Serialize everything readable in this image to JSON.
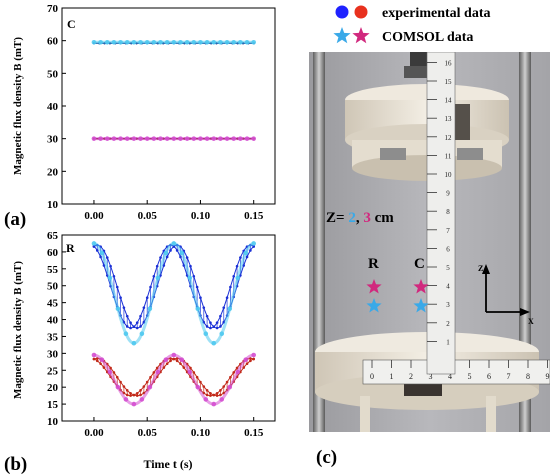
{
  "figure": {
    "label_a": "(a)",
    "label_b": "(b)",
    "label_c": "(c)"
  },
  "legend": {
    "experimental": "experimental data",
    "comsol": "COMSOL data",
    "experimental_colors": [
      "#1f22ff",
      "#e8311e"
    ],
    "comsol_colors": [
      "#3aa9e8",
      "#d1297e"
    ]
  },
  "photo": {
    "z_prefix": "Z= ",
    "z_value_1": "2",
    "z_separator": ", ",
    "z_value_2": "3",
    "z_unit": " cm",
    "z_value_1_color": "#3aa9e8",
    "z_value_2_color": "#d1297e",
    "label_R": "R",
    "label_C": "C",
    "axis_z": "Z",
    "axis_x": "X",
    "ruler_vertical_marks": [
      "1",
      "2",
      "3",
      "4",
      "5",
      "6",
      "7",
      "8",
      "9",
      "10",
      "11",
      "12",
      "13",
      "14",
      "15",
      "16"
    ],
    "ruler_horizontal_marks": [
      "0",
      "1",
      "2",
      "3",
      "4",
      "5",
      "6",
      "7",
      "8",
      "9"
    ]
  },
  "chart_data": [
    {
      "panel": "C",
      "type": "scatter",
      "xlabel": "",
      "ylabel": "Magnetic flux density B (mT)",
      "xlim": [
        -0.03,
        0.17
      ],
      "ylim": [
        10,
        70
      ],
      "xticks": [
        "0.00",
        "0.05",
        "0.10",
        "0.15"
      ],
      "yticks": [
        "10",
        "20",
        "30",
        "40",
        "50",
        "60",
        "70"
      ],
      "series": [
        {
          "kind": "exp-line",
          "color": "#0a2a8a",
          "x_start": 0.0,
          "x_end": 0.15,
          "y": 59.2
        },
        {
          "kind": "comsol",
          "color": "#4ec9ef",
          "x_start": 0.0,
          "x_end": 0.15,
          "y": 59.5
        },
        {
          "kind": "exp-line",
          "color": "#7a1010",
          "x_start": 0.0,
          "x_end": 0.15,
          "y": 30.0
        },
        {
          "kind": "comsol",
          "color": "#d44fd0",
          "x_start": 0.0,
          "x_end": 0.15,
          "y": 30.0
        }
      ]
    },
    {
      "panel": "R",
      "type": "line",
      "xlabel": "Time t (s)",
      "ylabel": "Magnetic flux density B (mT)",
      "xlim": [
        -0.03,
        0.17
      ],
      "ylim": [
        10,
        65
      ],
      "xticks": [
        "0.00",
        "0.05",
        "0.10",
        "0.15"
      ],
      "yticks": [
        "10",
        "15",
        "20",
        "25",
        "30",
        "35",
        "40",
        "45",
        "50",
        "55",
        "60",
        "65"
      ],
      "period": 0.075,
      "series": [
        {
          "kind": "exp-band",
          "color": "#1a2fd6",
          "x_start": 0.0,
          "x_end": 0.15,
          "max": 62.0,
          "min": 37.5,
          "upper_offset": 0.003,
          "lower_offset": -0.003
        },
        {
          "kind": "comsol",
          "color": "#4ec9ef",
          "x_start": 0.0,
          "x_end": 0.15,
          "max": 62.5,
          "min": 33.0
        },
        {
          "kind": "exp-band",
          "color": "#c22a1a",
          "x_start": 0.0,
          "x_end": 0.15,
          "max": 28.5,
          "min": 17.5,
          "upper_offset": 0.003,
          "lower_offset": -0.003
        },
        {
          "kind": "comsol",
          "color": "#d44fd0",
          "x_start": 0.0,
          "x_end": 0.15,
          "max": 29.5,
          "min": 15.0
        }
      ]
    }
  ]
}
